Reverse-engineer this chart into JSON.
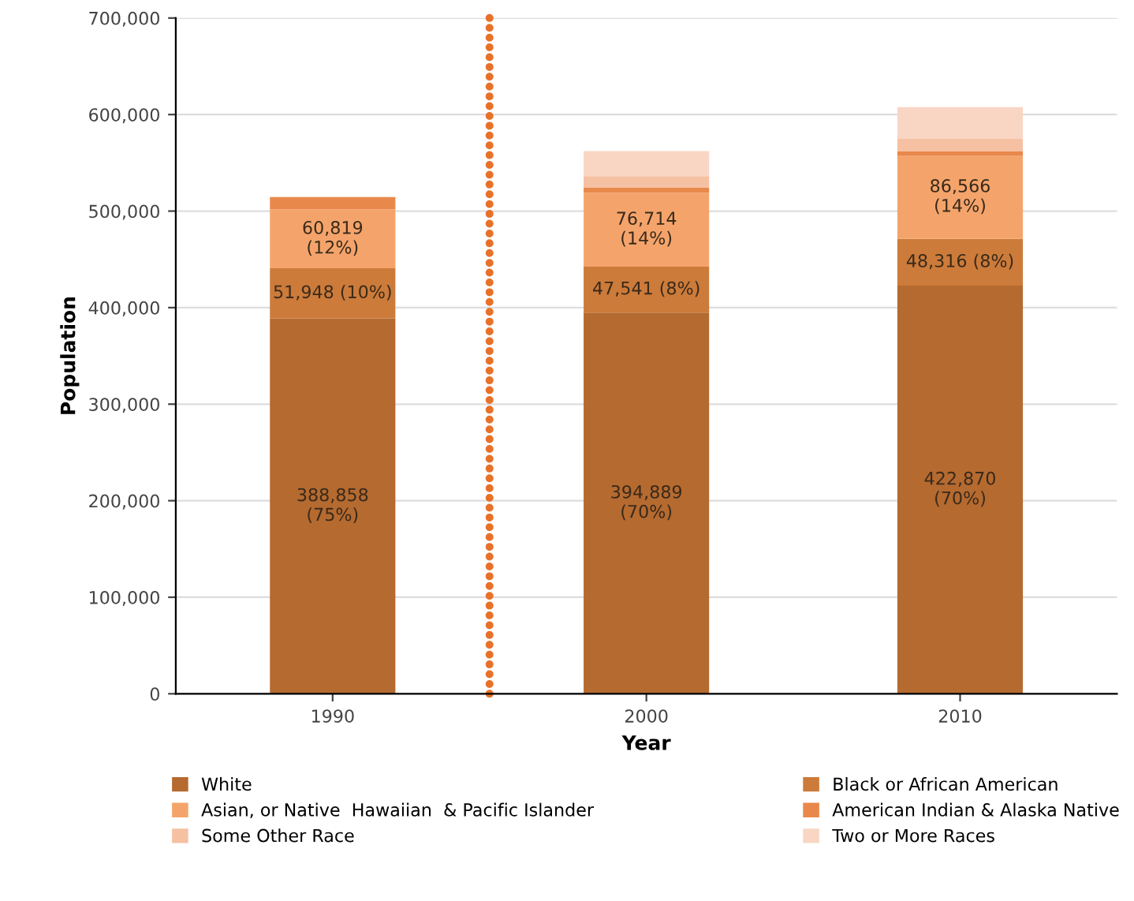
{
  "chart_data": {
    "type": "bar",
    "stacked": true,
    "xlabel": "Year",
    "ylabel": "Population",
    "categories": [
      "1990",
      "2000",
      "2010"
    ],
    "series": [
      {
        "name": "White",
        "color": "#b56a30",
        "values": [
          388858,
          394889,
          422870
        ],
        "value_labels": [
          "388,858\n(75%)",
          "394,889\n(70%)",
          "422,870\n(70%)"
        ]
      },
      {
        "name": "Black or African American",
        "color": "#cc7b3a",
        "values": [
          51948,
          47541,
          48316
        ],
        "value_labels": [
          "51,948 (10%)",
          "47,541 (8%)",
          "48,316 (8%)"
        ]
      },
      {
        "name": "Asian, or Native  Hawaiian  & Pacific Islander",
        "color": "#f4a46b",
        "values": [
          60819,
          76714,
          86566
        ],
        "value_labels": [
          "60,819\n(12%)",
          "76,714\n(14%)",
          "86,566\n(14%)"
        ]
      },
      {
        "name": "American Indian & Alaska Native",
        "color": "#e8894b",
        "values": [
          13000,
          5000,
          4000
        ]
      },
      {
        "name": "Some Other Race",
        "color": "#f6c0a2",
        "values": [
          null,
          12000,
          13000
        ]
      },
      {
        "name": "Two or More Races",
        "color": "#f9d5c4",
        "values": [
          null,
          26000,
          33000
        ]
      }
    ],
    "ylim": [
      0,
      700000
    ],
    "yticks": [
      {
        "value": 0,
        "label": "0"
      },
      {
        "value": 100000,
        "label": "100,000"
      },
      {
        "value": 200000,
        "label": "200,000"
      },
      {
        "value": 300000,
        "label": "300,000"
      },
      {
        "value": 400000,
        "label": "400,000"
      },
      {
        "value": 500000,
        "label": "500,000"
      },
      {
        "value": 600000,
        "label": "600,000"
      },
      {
        "value": 700000,
        "label": "700,000"
      }
    ],
    "grid": "y",
    "legend": "bottom"
  }
}
